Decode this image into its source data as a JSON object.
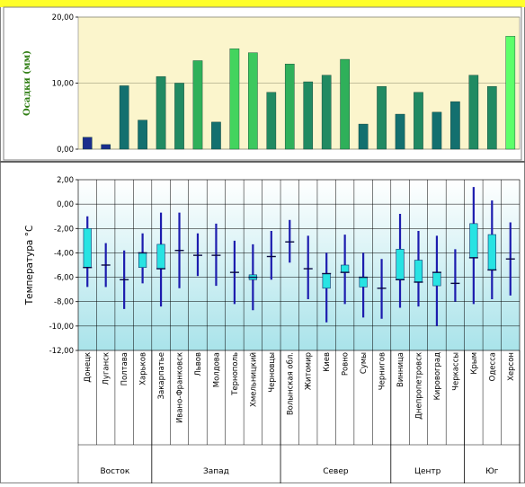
{
  "chart_data": [
    {
      "type": "bar",
      "ylabel": "Осадки (мм)",
      "ylim": [
        0,
        20
      ],
      "yticks": [
        "0,00",
        "10,00",
        "20,00"
      ],
      "categories": [
        "Донецк",
        "Луганск",
        "Полтава",
        "Харьков",
        "Закарпатье",
        "Ивано-Франковск",
        "Львов",
        "Молдова",
        "Тернополь",
        "Хмельницкий",
        "Черновцы",
        "Волынская обл.",
        "Житомир",
        "Киев",
        "Ровно",
        "Сумы",
        "Чернигов",
        "Винница",
        "Днепропетровск",
        "Кировоград",
        "Черкассы",
        "Крым",
        "Одесса",
        "Херсон"
      ],
      "values": [
        1.8,
        0.7,
        9.6,
        4.4,
        11.0,
        10.0,
        13.4,
        4.1,
        15.2,
        14.6,
        8.6,
        12.9,
        10.2,
        11.2,
        13.6,
        3.8,
        9.5,
        5.3,
        8.6,
        5.6,
        7.2,
        11.2,
        9.5,
        17.1
      ],
      "colors": [
        "#1a2d8c",
        "#1a2d8c",
        "#13706f",
        "#13706f",
        "#218a62",
        "#218a62",
        "#2fb05a",
        "#13706f",
        "#43d45e",
        "#3cc85e",
        "#218a62",
        "#2fb05a",
        "#218a62",
        "#218a62",
        "#2fb05a",
        "#13706f",
        "#218a62",
        "#13706f",
        "#218a62",
        "#13706f",
        "#13706f",
        "#218a62",
        "#218a62",
        "#5dff6a"
      ],
      "grid": true
    },
    {
      "type": "boxplot",
      "ylabel": "Температура °С",
      "ylim": [
        -12,
        2
      ],
      "yticks": [
        "2,00",
        "0,00",
        "-2,00",
        "-4,00",
        "-6,00",
        "-8,00",
        "-10,00",
        "-12,00"
      ],
      "categories": [
        "Донецк",
        "Луганск",
        "Полтава",
        "Харьков",
        "Закарпатье",
        "Ивано-Франковск",
        "Львов",
        "Молдова",
        "Тернополь",
        "Хмельницкий",
        "Черновцы",
        "Волынская обл.",
        "Житомир",
        "Киев",
        "Ровно",
        "Сумы",
        "Чернигов",
        "Винница",
        "Днепропетровск",
        "Кировоград",
        "Черкассы",
        "Крым",
        "Одесса",
        "Херсон"
      ],
      "series": [
        {
          "min": -6.8,
          "q1": -5.2,
          "median": -5.2,
          "q3": -2.0,
          "max": -1.0
        },
        {
          "min": -6.8,
          "median": -5.0,
          "max": -3.2
        },
        {
          "min": -8.6,
          "median": -6.2,
          "max": -3.8
        },
        {
          "min": -6.5,
          "q1": -5.2,
          "median": -4.0,
          "q3": -4.0,
          "max": -2.4
        },
        {
          "min": -8.4,
          "q1": -5.3,
          "median": -5.3,
          "q3": -3.3,
          "max": -0.7
        },
        {
          "min": -6.9,
          "median": -3.8,
          "max": -0.7
        },
        {
          "min": -5.9,
          "median": -4.2,
          "max": -2.4
        },
        {
          "min": -6.7,
          "median": -4.2,
          "max": -1.6
        },
        {
          "min": -8.2,
          "median": -5.6,
          "max": -3.0
        },
        {
          "min": -8.7,
          "q1": -6.2,
          "median": -6.0,
          "q3": -5.8,
          "max": -3.3
        },
        {
          "min": -6.2,
          "median": -4.3,
          "max": -2.2
        },
        {
          "min": -4.8,
          "median": -3.1,
          "max": -1.3
        },
        {
          "min": -7.8,
          "median": -5.3,
          "max": -2.6
        },
        {
          "min": -9.7,
          "q1": -6.9,
          "median": -5.7,
          "q3": -5.7,
          "max": -4.0
        },
        {
          "min": -8.2,
          "q1": -5.6,
          "median": -5.6,
          "q3": -5.0,
          "max": -2.5
        },
        {
          "min": -9.3,
          "q1": -6.8,
          "median": -6.0,
          "q3": -6.0,
          "max": -4.0
        },
        {
          "min": -9.4,
          "median": -6.9,
          "max": -4.5
        },
        {
          "min": -8.5,
          "q1": -6.2,
          "median": -6.2,
          "q3": -3.7,
          "max": -0.8
        },
        {
          "min": -8.4,
          "q1": -6.4,
          "median": -6.4,
          "q3": -4.6,
          "max": -2.2
        },
        {
          "min": -10.0,
          "q1": -6.7,
          "median": -5.6,
          "q3": -5.6,
          "max": -2.6
        },
        {
          "min": -8.0,
          "median": -6.5,
          "max": -3.7
        },
        {
          "min": -8.2,
          "q1": -4.4,
          "median": -4.4,
          "q3": -1.6,
          "max": 1.4
        },
        {
          "min": -7.8,
          "q1": -5.4,
          "median": -5.4,
          "q3": -2.5,
          "max": 0.3
        },
        {
          "min": -7.5,
          "median": -4.5,
          "max": -1.5
        }
      ],
      "groups": [
        {
          "name": "Восток",
          "count": 4
        },
        {
          "name": "Запад",
          "count": 7
        },
        {
          "name": "Север",
          "count": 6
        },
        {
          "name": "Центр",
          "count": 4
        },
        {
          "name": "Юг",
          "count": 3
        }
      ],
      "box_color": "#27e3e3",
      "whisker_color": "#1c1cae"
    }
  ],
  "title_strip_color": "#ffff2a",
  "top_panel_color": "#fbf5cc",
  "bottom_gradient": [
    "#ffffff",
    "#a9e3ea"
  ]
}
